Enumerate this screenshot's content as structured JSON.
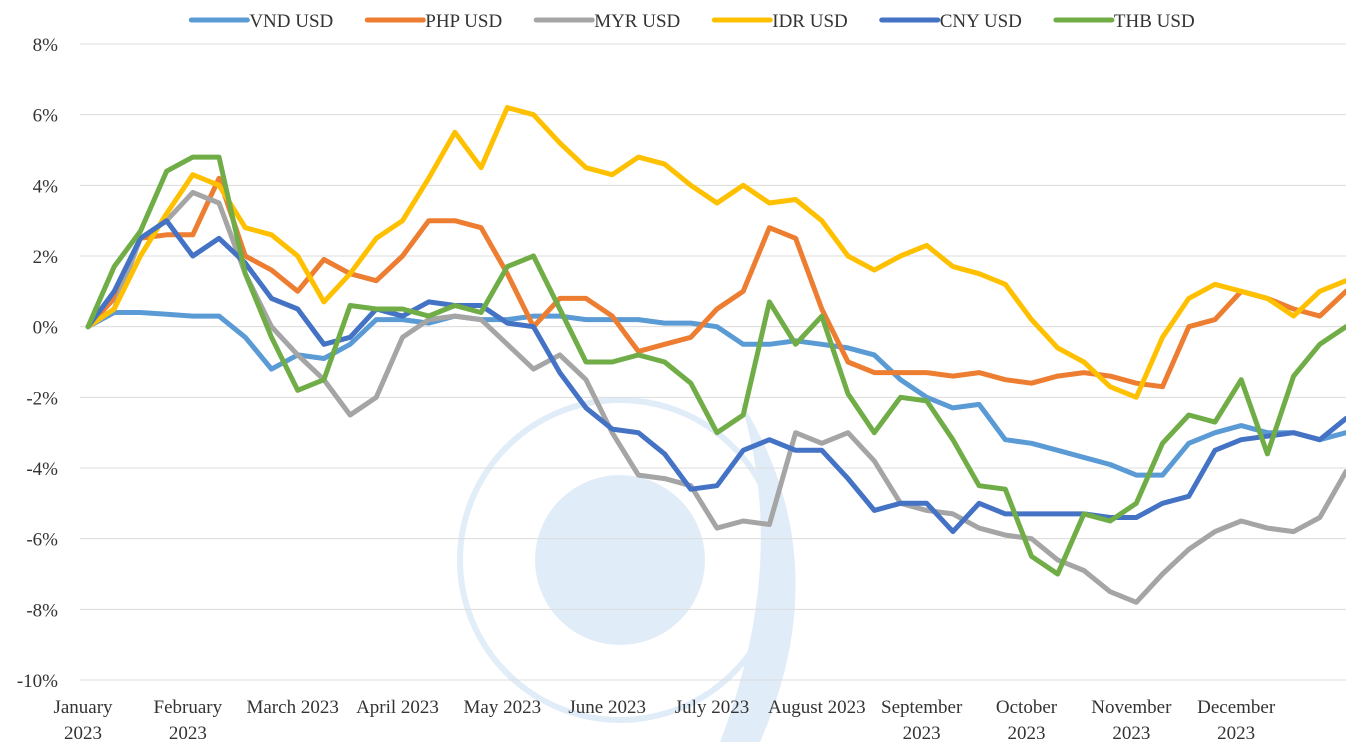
{
  "chart_data": {
    "type": "line",
    "categories": [
      "January 2023",
      null,
      null,
      null,
      "February 2023",
      null,
      null,
      null,
      "March 2023",
      null,
      null,
      null,
      "April 2023",
      null,
      null,
      null,
      "May 2023",
      null,
      null,
      null,
      "June 2023",
      null,
      null,
      null,
      "July 2023",
      null,
      null,
      null,
      "August 2023",
      null,
      null,
      null,
      "September 2023",
      null,
      null,
      null,
      "October 2023",
      null,
      null,
      null,
      "November 2023",
      null,
      null,
      null,
      "December 2023",
      null,
      null,
      null,
      null
    ],
    "series": [
      {
        "name": "VND USD",
        "color": "#5b9bd5",
        "values": [
          0,
          0.4,
          0.4,
          0.35,
          0.3,
          0.3,
          -0.3,
          -1.2,
          -0.8,
          -0.9,
          -0.5,
          0.2,
          0.2,
          0.1,
          0.3,
          0.2,
          0.2,
          0.3,
          0.3,
          0.2,
          0.2,
          0.2,
          0.1,
          0.1,
          0,
          -0.5,
          -0.5,
          -0.4,
          -0.5,
          -0.6,
          -0.8,
          -1.5,
          -2.0,
          -2.3,
          -2.2,
          -3.2,
          -3.3,
          -3.5,
          -3.7,
          -3.9,
          -4.2,
          -4.2,
          -3.3,
          -3.0,
          -2.8,
          -3.0,
          -3.0,
          -3.2,
          -3.0
        ]
      },
      {
        "name": "PHP USD",
        "color": "#ed7d31",
        "values": [
          0,
          0.8,
          2.5,
          2.6,
          2.6,
          4.2,
          2.0,
          1.6,
          1.0,
          1.9,
          1.5,
          1.3,
          2.0,
          3.0,
          3.0,
          2.8,
          1.5,
          0,
          0.8,
          0.8,
          0.3,
          -0.7,
          -0.5,
          -0.3,
          0.5,
          1.0,
          2.8,
          2.5,
          0.5,
          -1.0,
          -1.3,
          -1.3,
          -1.3,
          -1.4,
          -1.3,
          -1.5,
          -1.6,
          -1.4,
          -1.3,
          -1.4,
          -1.6,
          -1.7,
          0,
          0.2,
          1.0,
          0.8,
          0.5,
          0.3,
          1.0
        ]
      },
      {
        "name": "MYR USD",
        "color": "#a5a5a5",
        "values": [
          0,
          0.5,
          2.5,
          3.0,
          3.8,
          3.5,
          1.5,
          0,
          -0.8,
          -1.5,
          -2.5,
          -2.0,
          -0.3,
          0.2,
          0.3,
          0.2,
          -0.5,
          -1.2,
          -0.8,
          -1.5,
          -3.0,
          -4.2,
          -4.3,
          -4.5,
          -5.7,
          -5.5,
          -5.6,
          -3.0,
          -3.3,
          -3.0,
          -3.8,
          -5.0,
          -5.2,
          -5.3,
          -5.7,
          -5.9,
          -6.0,
          -6.6,
          -6.9,
          -7.5,
          -7.8,
          -7.0,
          -6.3,
          -5.8,
          -5.5,
          -5.7,
          -5.8,
          -5.4,
          -4.1
        ]
      },
      {
        "name": "IDR USD",
        "color": "#ffc000",
        "values": [
          0,
          0.5,
          2.0,
          3.2,
          4.3,
          4.0,
          2.8,
          2.6,
          2.0,
          0.7,
          1.5,
          2.5,
          3.0,
          4.2,
          5.5,
          4.5,
          6.2,
          6.0,
          5.2,
          4.5,
          4.3,
          4.8,
          4.6,
          4.0,
          3.5,
          4.0,
          3.5,
          3.6,
          3.0,
          2.0,
          1.6,
          2.0,
          2.3,
          1.7,
          1.5,
          1.2,
          0.2,
          -0.6,
          -1.0,
          -1.7,
          -2.0,
          -0.3,
          0.8,
          1.2,
          1.0,
          0.8,
          0.3,
          1.0,
          1.3
        ]
      },
      {
        "name": "CNY USD",
        "color": "#4472c4",
        "values": [
          0,
          1.0,
          2.5,
          3.0,
          2.0,
          2.5,
          1.8,
          0.8,
          0.5,
          -0.5,
          -0.3,
          0.5,
          0.3,
          0.7,
          0.6,
          0.6,
          0.1,
          0.0,
          -1.3,
          -2.3,
          -2.9,
          -3.0,
          -3.6,
          -4.6,
          -4.5,
          -3.5,
          -3.2,
          -3.5,
          -3.5,
          -4.3,
          -5.2,
          -5.0,
          -5.0,
          -5.8,
          -5.0,
          -5.3,
          -5.3,
          -5.3,
          -5.3,
          -5.4,
          -5.4,
          -5.0,
          -4.8,
          -3.5,
          -3.2,
          -3.1,
          -3.0,
          -3.2,
          -2.6
        ]
      },
      {
        "name": "THB USD",
        "color": "#70ad47",
        "values": [
          0,
          1.7,
          2.7,
          4.4,
          4.8,
          4.8,
          1.5,
          -0.3,
          -1.8,
          -1.5,
          0.6,
          0.5,
          0.5,
          0.3,
          0.6,
          0.4,
          1.7,
          2.0,
          0.5,
          -1.0,
          -1.0,
          -0.8,
          -1.0,
          -1.6,
          -3.0,
          -2.5,
          0.7,
          -0.5,
          0.3,
          -1.9,
          -3.0,
          -2.0,
          -2.1,
          -3.2,
          -4.5,
          -4.6,
          -6.5,
          -7.0,
          -5.3,
          -5.5,
          -5.0,
          -3.3,
          -2.5,
          -2.7,
          -1.5,
          -3.6,
          -1.4,
          -0.5,
          0
        ]
      }
    ],
    "ylim": [
      -10,
      8
    ],
    "yticks": [
      {
        "value": -10,
        "label": "-10%"
      },
      {
        "value": -8,
        "label": "-8%"
      },
      {
        "value": -6,
        "label": "-6%"
      },
      {
        "value": -4,
        "label": "-4%"
      },
      {
        "value": -2,
        "label": "-2%"
      },
      {
        "value": 0,
        "label": "0%"
      },
      {
        "value": 2,
        "label": "2%"
      },
      {
        "value": 4,
        "label": "4%"
      },
      {
        "value": 6,
        "label": "6%"
      },
      {
        "value": 8,
        "label": "8%"
      }
    ],
    "grid": true,
    "legend": "top"
  }
}
